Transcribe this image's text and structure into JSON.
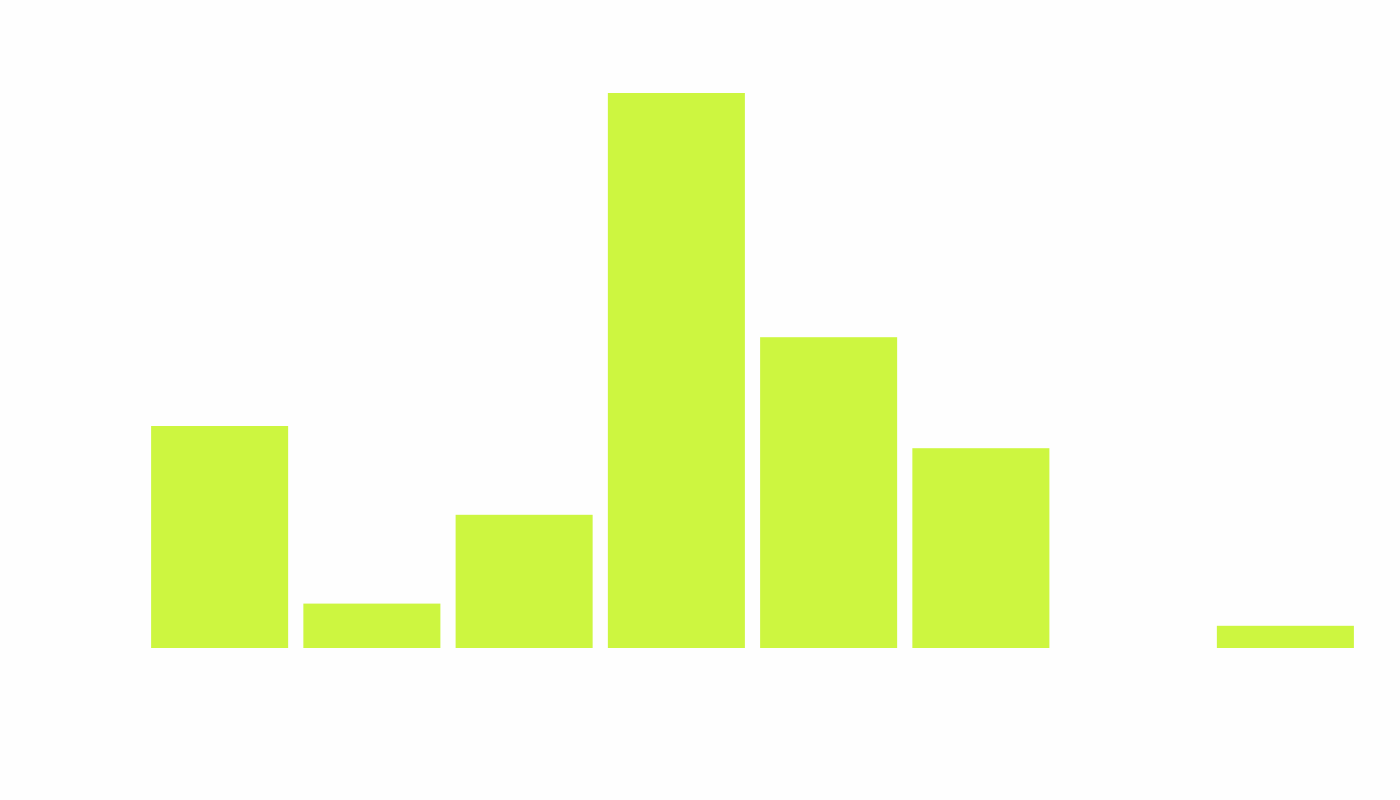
{
  "colors": {
    "background": "#fefefe",
    "bar": "#cdf640"
  },
  "chart_data": {
    "type": "bar",
    "values": [
      10,
      2,
      6,
      25,
      14,
      9,
      0,
      1
    ],
    "ylim": [
      0,
      25
    ],
    "grid": false,
    "axes_visible": false
  }
}
